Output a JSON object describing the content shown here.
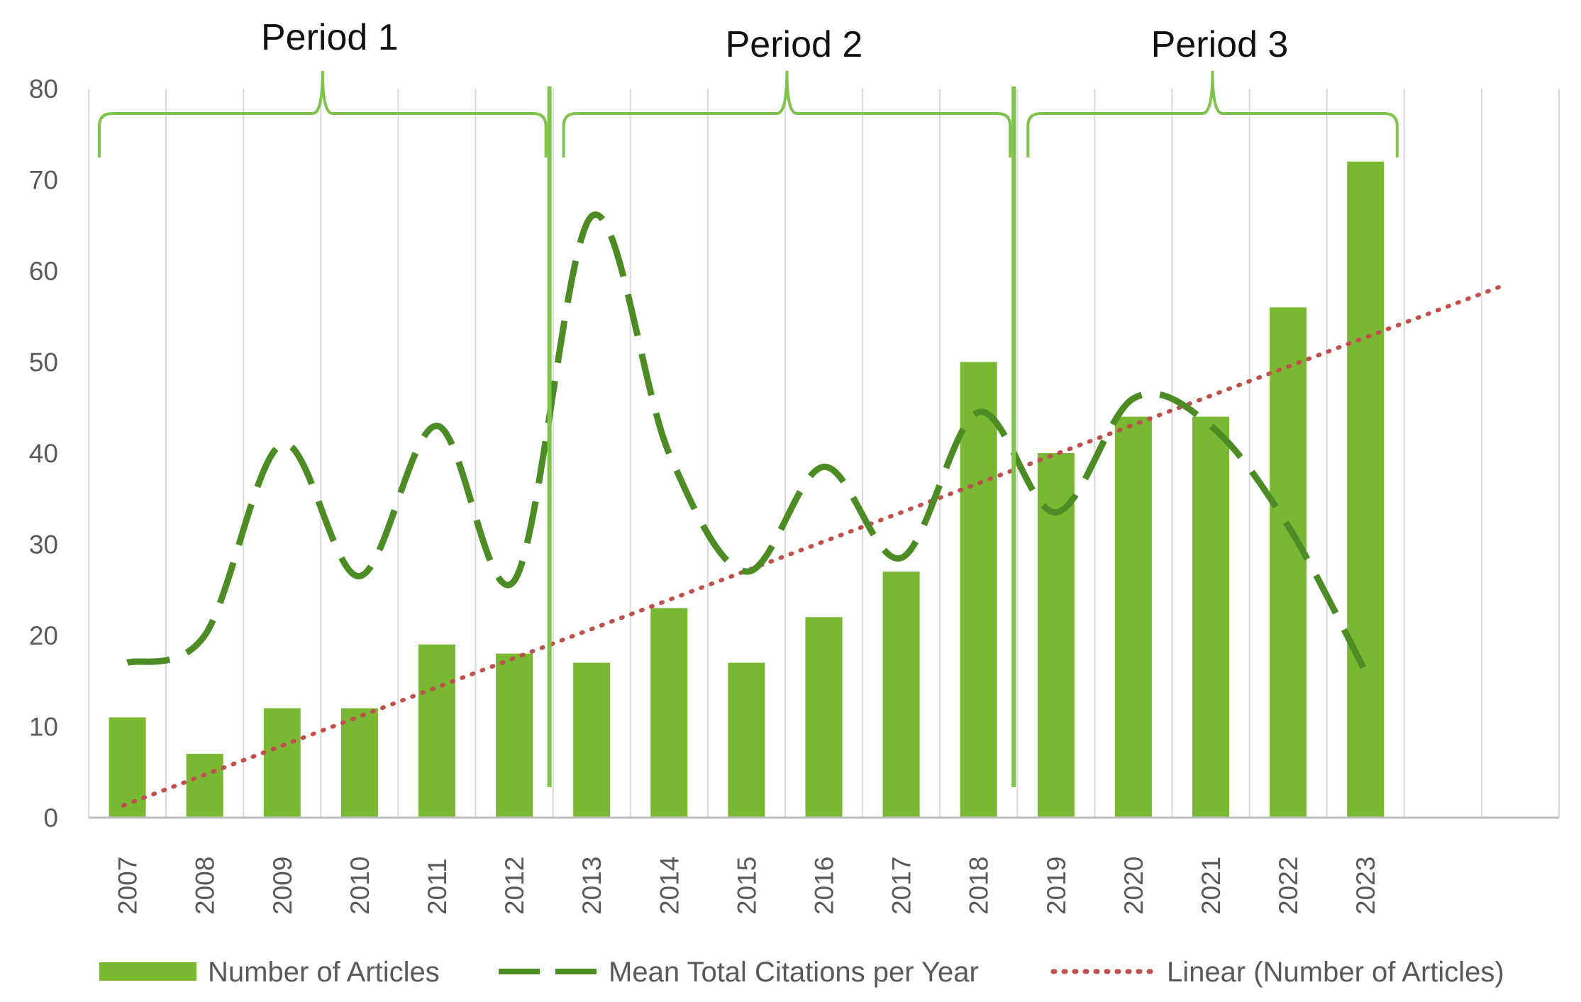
{
  "chart_data": {
    "type": "bar",
    "categories": [
      "2007",
      "2008",
      "2009",
      "2010",
      "2011",
      "2012",
      "2013",
      "2014",
      "2015",
      "2016",
      "2017",
      "2018",
      "2019",
      "2020",
      "2021",
      "2022",
      "2023"
    ],
    "extra_slots": 2,
    "ylim": [
      0,
      80
    ],
    "yticks": [
      0,
      10,
      20,
      30,
      40,
      50,
      60,
      70,
      80
    ],
    "series": [
      {
        "name": "Number of Articles",
        "kind": "bar",
        "values": [
          11,
          7,
          12,
          12,
          19,
          18,
          17,
          23,
          17,
          22,
          27,
          50,
          40,
          44,
          44,
          56,
          72
        ]
      },
      {
        "name": "Mean Total Citations per Year",
        "kind": "line",
        "style": "dashed",
        "values": [
          17,
          20,
          41,
          26.5,
          43,
          26,
          66,
          40,
          27,
          38.5,
          28.5,
          44.5,
          33.5,
          46,
          43,
          32,
          16
        ]
      },
      {
        "name": "Linear (Number of Articles)",
        "kind": "trendline",
        "style": "dotted",
        "start": [
          1.5,
          0
        ],
        "slope": 3.2
      }
    ],
    "periods": [
      {
        "label": "Period 1",
        "from": 0,
        "to": 5
      },
      {
        "label": "Period 2",
        "from": 6,
        "to": 11
      },
      {
        "label": "Period 3",
        "from": 12,
        "to": 16
      }
    ],
    "title": "",
    "xlabel": "",
    "ylabel": "",
    "legend_position": "bottom"
  },
  "colors": {
    "bar": "#78b833",
    "line": "#4d8c25",
    "trend": "#c0504d",
    "bracket": "#7ec34a",
    "grid": "#d9d9d9",
    "axis": "#bfbfbf"
  }
}
